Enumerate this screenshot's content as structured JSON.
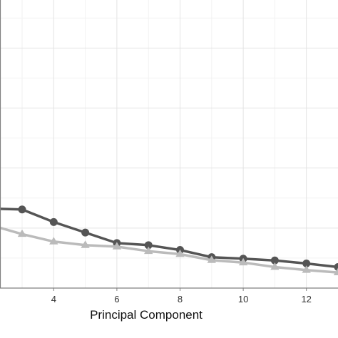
{
  "chart_data": {
    "type": "line",
    "title": "",
    "xlabel": "Principal Component",
    "ylabel": "",
    "xlim": [
      2.3,
      13.0
    ],
    "ylim": [
      0,
      9.6
    ],
    "x_ticks": [
      4,
      6,
      8,
      10,
      12
    ],
    "grid": true,
    "series": [
      {
        "color": "#555555",
        "marker": "circle",
        "x": [
          2,
          3,
          4,
          5,
          6,
          7,
          8,
          9,
          10,
          11,
          12,
          13
        ],
        "y": [
          2.65,
          2.62,
          2.2,
          1.85,
          1.5,
          1.43,
          1.27,
          1.03,
          0.98,
          0.92,
          0.82,
          0.7
        ]
      },
      {
        "color": "#bbbbbb",
        "marker": "triangle",
        "x": [
          2,
          3,
          4,
          5,
          6,
          7,
          8,
          9,
          10,
          11,
          12,
          13
        ],
        "y": [
          2.1,
          1.8,
          1.55,
          1.43,
          1.38,
          1.23,
          1.13,
          0.93,
          0.85,
          0.7,
          0.6,
          0.52
        ]
      }
    ]
  }
}
